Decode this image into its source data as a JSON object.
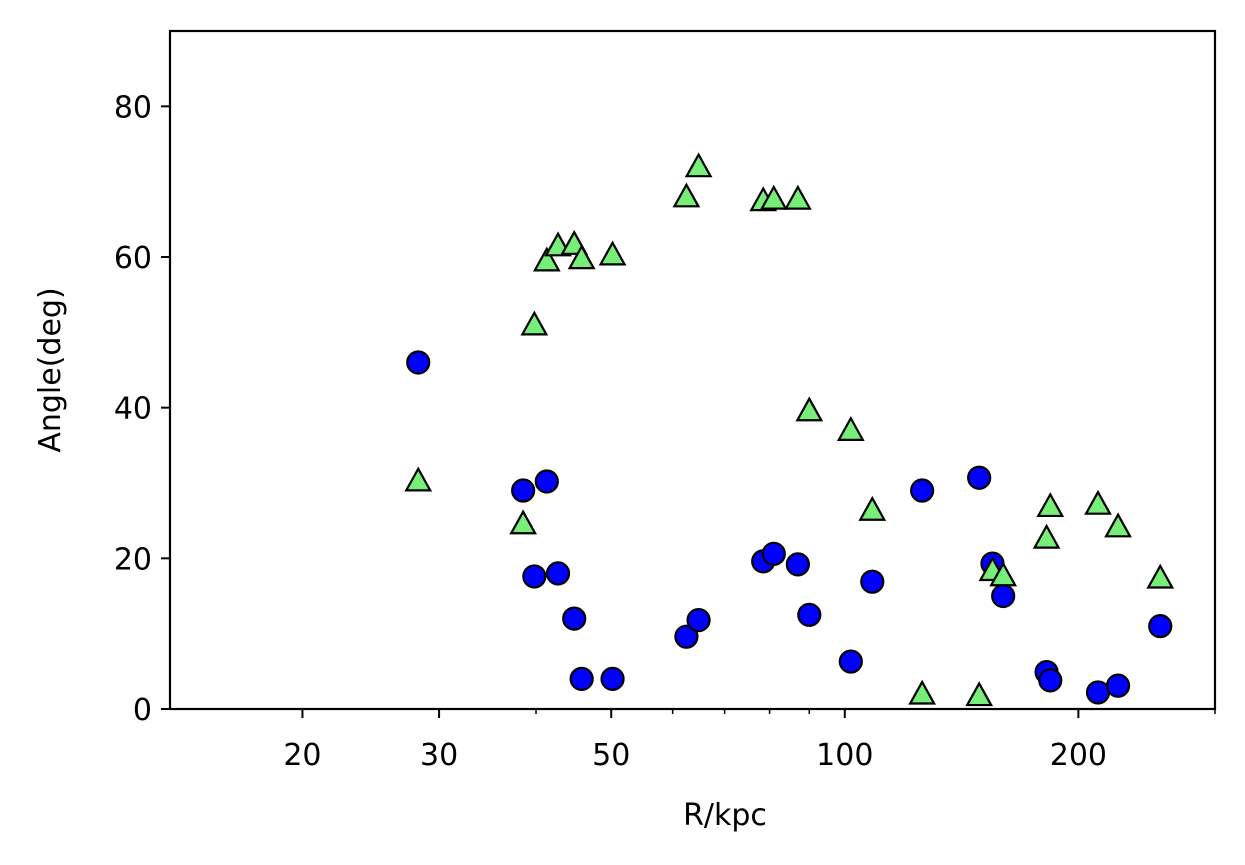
{
  "chart_data": {
    "type": "scatter",
    "title": "",
    "xlabel": "R/kpc",
    "ylabel": "Angle(deg)",
    "xscale": "log",
    "xlim": [
      13.5,
      300
    ],
    "ylim": [
      0,
      90
    ],
    "xticks": [
      20,
      30,
      50,
      100,
      200
    ],
    "xtick_labels": [
      "20",
      "30",
      "50",
      "100",
      "200"
    ],
    "yticks": [
      0,
      20,
      40,
      60,
      80
    ],
    "ytick_labels": [
      "0",
      "20",
      "40",
      "60",
      "80"
    ],
    "grid": false,
    "series": [
      {
        "marker": "circle",
        "color": "#0000ff",
        "edgecolor": "#000000",
        "points": [
          [
            28.2,
            46
          ],
          [
            38.5,
            29
          ],
          [
            39.8,
            17.6
          ],
          [
            41.3,
            30.2
          ],
          [
            42.7,
            18
          ],
          [
            44.8,
            12
          ],
          [
            45.8,
            4
          ],
          [
            50.2,
            4
          ],
          [
            62.5,
            9.6
          ],
          [
            64.8,
            11.8
          ],
          [
            78.5,
            19.6
          ],
          [
            81,
            20.6
          ],
          [
            87,
            19.2
          ],
          [
            90,
            12.5
          ],
          [
            101.8,
            6.3
          ],
          [
            108.5,
            16.9
          ],
          [
            125.8,
            29
          ],
          [
            149,
            30.7
          ],
          [
            155,
            19.3
          ],
          [
            160,
            15
          ],
          [
            182,
            4.9
          ],
          [
            184,
            3.8
          ],
          [
            212,
            2.2
          ],
          [
            225,
            3.1
          ],
          [
            255,
            11
          ]
        ]
      },
      {
        "marker": "triangle",
        "color": "#77ee77",
        "edgecolor": "#000000",
        "points": [
          [
            28.2,
            30.3
          ],
          [
            38.5,
            24.6
          ],
          [
            39.8,
            51
          ],
          [
            41.3,
            59.5
          ],
          [
            42.7,
            61.5
          ],
          [
            44.8,
            61.7
          ],
          [
            45.8,
            59.8
          ],
          [
            50.2,
            60.3
          ],
          [
            62.5,
            68
          ],
          [
            64.8,
            72
          ],
          [
            78.5,
            67.5
          ],
          [
            81,
            67.7
          ],
          [
            87,
            67.7
          ],
          [
            90,
            39.6
          ],
          [
            101.8,
            37
          ],
          [
            108.5,
            26.4
          ],
          [
            125.8,
            2
          ],
          [
            149,
            1.8
          ],
          [
            155,
            18.4
          ],
          [
            160,
            17.7
          ],
          [
            182,
            22.7
          ],
          [
            184,
            26.9
          ],
          [
            212,
            27.2
          ],
          [
            225,
            24.2
          ],
          [
            255,
            17.4
          ]
        ]
      }
    ]
  }
}
